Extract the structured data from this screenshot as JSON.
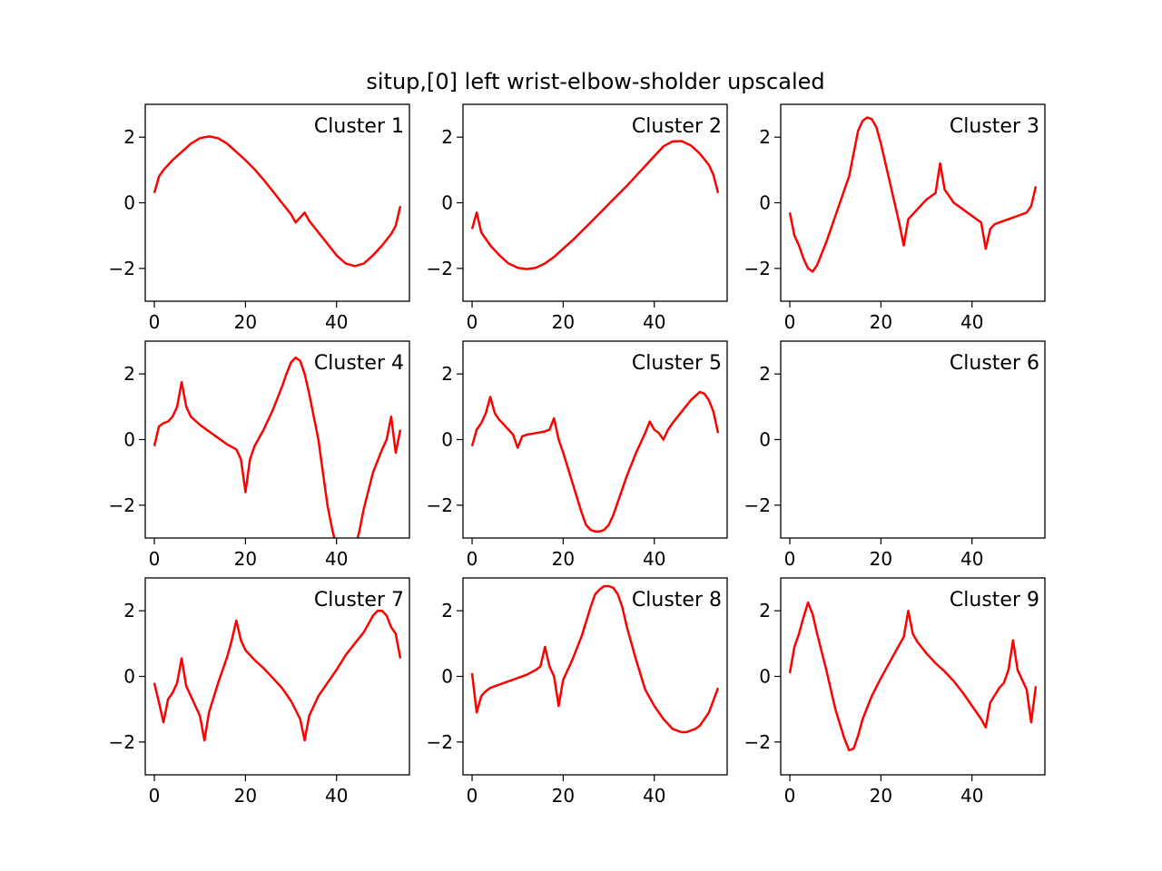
{
  "figure": {
    "title": "situp,[0] left wrist-elbow-sholder upscaled",
    "line_color": "#ff0000"
  },
  "chart_data": [
    {
      "type": "line",
      "title": "Cluster 1",
      "xlim": [
        -2,
        56
      ],
      "ylim": [
        -3,
        3
      ],
      "xticks": [
        0,
        20,
        40
      ],
      "yticks": [
        -2,
        0,
        2
      ],
      "series": [
        {
          "x": [
            0,
            1,
            2,
            4,
            6,
            8,
            10,
            12,
            14,
            16,
            18,
            20,
            22,
            24,
            26,
            28,
            30,
            31,
            32,
            33,
            34,
            36,
            38,
            40,
            42,
            44,
            46,
            48,
            50,
            52,
            53,
            54
          ],
          "values": [
            0.3,
            0.8,
            1.0,
            1.3,
            1.55,
            1.8,
            1.97,
            2.02,
            1.97,
            1.8,
            1.55,
            1.3,
            1.02,
            0.7,
            0.35,
            0.0,
            -0.35,
            -0.6,
            -0.45,
            -0.3,
            -0.55,
            -0.9,
            -1.25,
            -1.6,
            -1.85,
            -1.93,
            -1.85,
            -1.6,
            -1.3,
            -0.95,
            -0.7,
            -0.1
          ]
        }
      ]
    },
    {
      "type": "line",
      "title": "Cluster 2",
      "xlim": [
        -2,
        56
      ],
      "ylim": [
        -3,
        3
      ],
      "xticks": [
        0,
        20,
        40
      ],
      "yticks": [
        -2,
        0,
        2
      ],
      "series": [
        {
          "x": [
            0,
            1,
            2,
            4,
            6,
            8,
            10,
            12,
            14,
            16,
            18,
            20,
            22,
            24,
            26,
            28,
            30,
            32,
            34,
            36,
            38,
            40,
            42,
            44,
            46,
            48,
            50,
            52,
            53,
            54
          ],
          "values": [
            -0.8,
            -0.3,
            -0.9,
            -1.3,
            -1.6,
            -1.85,
            -1.98,
            -2.02,
            -1.98,
            -1.85,
            -1.65,
            -1.4,
            -1.15,
            -0.88,
            -0.6,
            -0.32,
            -0.04,
            0.24,
            0.52,
            0.82,
            1.12,
            1.42,
            1.72,
            1.87,
            1.88,
            1.75,
            1.5,
            1.15,
            0.85,
            0.3
          ]
        }
      ]
    },
    {
      "type": "line",
      "title": "Cluster 3",
      "xlim": [
        -2,
        56
      ],
      "ylim": [
        -3,
        3
      ],
      "xticks": [
        0,
        20,
        40
      ],
      "yticks": [
        -2,
        0,
        2
      ],
      "series": [
        {
          "x": [
            0,
            1,
            2,
            3,
            4,
            5,
            6,
            8,
            10,
            12,
            13,
            14,
            15,
            16,
            17,
            18,
            19,
            20,
            21,
            22,
            23,
            24,
            25,
            26,
            27,
            28,
            30,
            32,
            33,
            34,
            36,
            38,
            40,
            42,
            43,
            44,
            45,
            46,
            48,
            50,
            52,
            53,
            54
          ],
          "values": [
            -0.3,
            -1.0,
            -1.3,
            -1.7,
            -2.0,
            -2.1,
            -1.9,
            -1.2,
            -0.4,
            0.4,
            0.8,
            1.5,
            2.2,
            2.5,
            2.6,
            2.55,
            2.3,
            1.8,
            1.2,
            0.6,
            0.0,
            -0.6,
            -1.3,
            -0.5,
            -0.35,
            -0.2,
            0.1,
            0.3,
            1.2,
            0.4,
            0.0,
            -0.2,
            -0.4,
            -0.6,
            -1.4,
            -0.8,
            -0.65,
            -0.6,
            -0.5,
            -0.4,
            -0.3,
            -0.1,
            0.5
          ]
        }
      ]
    },
    {
      "type": "line",
      "title": "Cluster 4",
      "xlim": [
        -2,
        56
      ],
      "ylim": [
        -3,
        3
      ],
      "xticks": [
        0,
        20,
        40
      ],
      "yticks": [
        -2,
        0,
        2
      ],
      "series": [
        {
          "x": [
            0,
            1,
            2,
            3,
            4,
            5,
            6,
            7,
            8,
            10,
            12,
            14,
            16,
            18,
            19,
            20,
            21,
            22,
            24,
            26,
            28,
            29,
            30,
            31,
            32,
            33,
            34,
            36,
            38,
            39,
            40,
            42,
            44,
            45,
            46,
            48,
            50,
            51,
            52,
            53,
            54
          ],
          "values": [
            -0.2,
            0.4,
            0.5,
            0.55,
            0.7,
            1.0,
            1.75,
            1.0,
            0.7,
            0.45,
            0.25,
            0.05,
            -0.15,
            -0.3,
            -0.6,
            -1.6,
            -0.6,
            -0.2,
            0.3,
            0.9,
            1.6,
            2.0,
            2.35,
            2.5,
            2.4,
            2.0,
            1.4,
            0.0,
            -2.0,
            -2.7,
            -3.3,
            -3.6,
            -3.3,
            -2.8,
            -2.1,
            -1.0,
            -0.3,
            0.0,
            0.7,
            -0.4,
            0.3
          ]
        }
      ]
    },
    {
      "type": "line",
      "title": "Cluster 5",
      "xlim": [
        -2,
        56
      ],
      "ylim": [
        -3,
        3
      ],
      "xticks": [
        0,
        20,
        40
      ],
      "yticks": [
        -2,
        0,
        2
      ],
      "series": [
        {
          "x": [
            0,
            1,
            2,
            3,
            4,
            5,
            6,
            7,
            8,
            9,
            10,
            11,
            12,
            14,
            16,
            17,
            18,
            19,
            20,
            22,
            24,
            25,
            26,
            27,
            28,
            29,
            30,
            31,
            32,
            34,
            36,
            38,
            39,
            40,
            41,
            42,
            43,
            44,
            46,
            48,
            50,
            51,
            52,
            53,
            54
          ],
          "values": [
            -0.2,
            0.3,
            0.5,
            0.8,
            1.3,
            0.8,
            0.6,
            0.45,
            0.3,
            0.15,
            -0.25,
            0.1,
            0.15,
            0.2,
            0.25,
            0.3,
            0.65,
            0.0,
            -0.4,
            -1.3,
            -2.2,
            -2.6,
            -2.75,
            -2.8,
            -2.8,
            -2.75,
            -2.6,
            -2.3,
            -1.9,
            -1.1,
            -0.4,
            0.2,
            0.55,
            0.3,
            0.2,
            0.0,
            0.3,
            0.5,
            0.85,
            1.2,
            1.45,
            1.4,
            1.2,
            0.85,
            0.2
          ]
        }
      ]
    },
    {
      "type": "line",
      "title": "Cluster 6",
      "xlim": [
        -2,
        56
      ],
      "ylim": [
        -3,
        3
      ],
      "xticks": [
        0,
        20,
        40
      ],
      "yticks": [
        -2,
        0,
        2
      ],
      "series": []
    },
    {
      "type": "line",
      "title": "Cluster 7",
      "xlim": [
        -2,
        56
      ],
      "ylim": [
        -3,
        3
      ],
      "xticks": [
        0,
        20,
        40
      ],
      "yticks": [
        -2,
        0,
        2
      ],
      "series": [
        {
          "x": [
            0,
            1,
            2,
            3,
            4,
            5,
            6,
            7,
            8,
            10,
            11,
            12,
            14,
            16,
            17,
            18,
            19,
            20,
            22,
            24,
            26,
            28,
            30,
            32,
            33,
            34,
            36,
            38,
            40,
            42,
            44,
            46,
            48,
            49,
            50,
            51,
            52,
            53,
            54
          ],
          "values": [
            -0.2,
            -0.8,
            -1.4,
            -0.7,
            -0.5,
            -0.2,
            0.55,
            -0.3,
            -0.6,
            -1.2,
            -1.95,
            -1.1,
            -0.2,
            0.6,
            1.1,
            1.7,
            1.1,
            0.8,
            0.5,
            0.25,
            -0.05,
            -0.35,
            -0.75,
            -1.3,
            -1.95,
            -1.2,
            -0.6,
            -0.2,
            0.2,
            0.65,
            1.0,
            1.35,
            1.85,
            2.0,
            2.0,
            1.85,
            1.5,
            1.3,
            0.55
          ]
        }
      ]
    },
    {
      "type": "line",
      "title": "Cluster 8",
      "xlim": [
        -2,
        56
      ],
      "ylim": [
        -3,
        3
      ],
      "xticks": [
        0,
        20,
        40
      ],
      "yticks": [
        -2,
        0,
        2
      ],
      "series": [
        {
          "x": [
            0,
            1,
            2,
            3,
            4,
            6,
            8,
            10,
            12,
            14,
            15,
            16,
            17,
            18,
            19,
            20,
            22,
            24,
            26,
            27,
            28,
            29,
            30,
            31,
            32,
            33,
            34,
            36,
            38,
            40,
            42,
            44,
            46,
            47,
            48,
            49,
            50,
            52,
            54
          ],
          "values": [
            0.1,
            -1.1,
            -0.6,
            -0.45,
            -0.35,
            -0.25,
            -0.15,
            -0.05,
            0.05,
            0.2,
            0.3,
            0.9,
            0.3,
            0.0,
            -0.9,
            -0.1,
            0.5,
            1.2,
            2.1,
            2.5,
            2.65,
            2.75,
            2.75,
            2.7,
            2.5,
            2.1,
            1.5,
            0.5,
            -0.4,
            -0.9,
            -1.3,
            -1.6,
            -1.7,
            -1.7,
            -1.65,
            -1.6,
            -1.5,
            -1.1,
            -0.35
          ]
        }
      ]
    },
    {
      "type": "line",
      "title": "Cluster 9",
      "xlim": [
        -2,
        56
      ],
      "ylim": [
        -3,
        3
      ],
      "xticks": [
        0,
        20,
        40
      ],
      "yticks": [
        -2,
        0,
        2
      ],
      "series": [
        {
          "x": [
            0,
            1,
            2,
            3,
            4,
            5,
            6,
            8,
            10,
            12,
            13,
            14,
            15,
            16,
            18,
            20,
            22,
            24,
            25,
            26,
            27,
            28,
            30,
            32,
            34,
            36,
            38,
            40,
            42,
            43,
            44,
            46,
            47,
            48,
            49,
            50,
            52,
            53,
            54
          ],
          "values": [
            0.1,
            0.9,
            1.3,
            1.8,
            2.25,
            1.9,
            1.3,
            0.2,
            -1.0,
            -1.9,
            -2.25,
            -2.2,
            -1.8,
            -1.3,
            -0.6,
            -0.05,
            0.45,
            0.95,
            1.2,
            2.0,
            1.3,
            1.05,
            0.7,
            0.4,
            0.15,
            -0.15,
            -0.5,
            -0.9,
            -1.3,
            -1.55,
            -0.8,
            -0.35,
            -0.2,
            0.2,
            1.1,
            0.2,
            -0.4,
            -1.4,
            -0.3
          ]
        }
      ]
    }
  ]
}
